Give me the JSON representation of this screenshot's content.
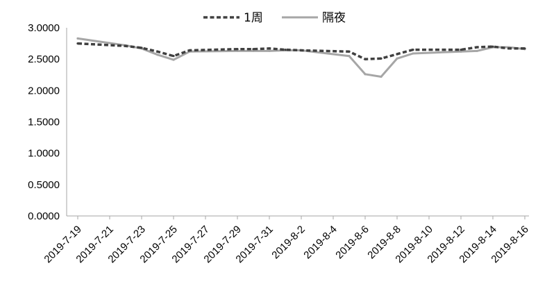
{
  "chart_data": {
    "type": "line",
    "title": "",
    "xlabel": "",
    "ylabel": "",
    "ylim": [
      0,
      3
    ],
    "yticks": [
      "0.0000",
      "0.5000",
      "1.0000",
      "1.5000",
      "2.0000",
      "2.5000",
      "3.0000"
    ],
    "xticks": [
      "2019-7-19",
      "2019-7-21",
      "2019-7-23",
      "2019-7-25",
      "2019-7-27",
      "2019-7-29",
      "2019-7-31",
      "2019-8-2",
      "2019-8-4",
      "2019-8-6",
      "2019-8-8",
      "2019-8-10",
      "2019-8-12",
      "2019-8-14",
      "2019-8-16"
    ],
    "x": [
      "2019-7-19",
      "2019-7-22",
      "2019-7-23",
      "2019-7-24",
      "2019-7-25",
      "2019-7-26",
      "2019-7-29",
      "2019-7-30",
      "2019-7-31",
      "2019-8-1",
      "2019-8-2",
      "2019-8-5",
      "2019-8-6",
      "2019-8-7",
      "2019-8-8",
      "2019-8-9",
      "2019-8-12",
      "2019-8-13",
      "2019-8-14",
      "2019-8-15",
      "2019-8-16"
    ],
    "legend_position": "top",
    "grid": false,
    "series": [
      {
        "name": "1周",
        "style": "dashed",
        "color": "#404040",
        "values": [
          2.75,
          2.71,
          2.68,
          2.62,
          2.55,
          2.64,
          2.66,
          2.66,
          2.67,
          2.65,
          2.64,
          2.62,
          2.5,
          2.51,
          2.58,
          2.65,
          2.65,
          2.69,
          2.7,
          2.67,
          2.67
        ]
      },
      {
        "name": "隔夜",
        "style": "solid",
        "color": "#a6a6a6",
        "values": [
          2.83,
          2.72,
          2.67,
          2.57,
          2.49,
          2.62,
          2.63,
          2.63,
          2.63,
          2.64,
          2.64,
          2.55,
          2.26,
          2.22,
          2.51,
          2.59,
          2.62,
          2.63,
          2.69,
          2.69,
          2.66
        ]
      }
    ]
  }
}
